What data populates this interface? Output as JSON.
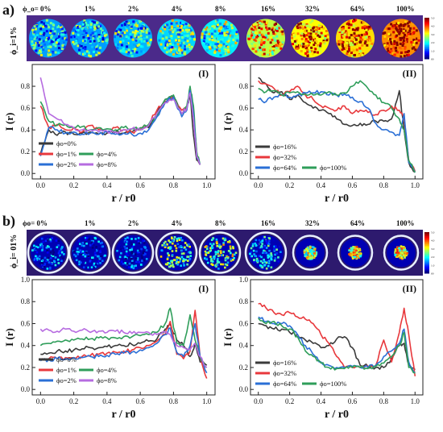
{
  "colors": {
    "black": "#3a3a3a",
    "red": "#e8383c",
    "green": "#2f9e5a",
    "blue": "#2a6fd6",
    "purple": "#b66be0"
  },
  "strip_scale_labels": [
    "00",
    "0.5",
    "1.0",
    "1.5",
    "2.0",
    "2.5",
    "3.0",
    "3.5",
    "4.0",
    "4.5",
    "5.0"
  ],
  "panels": [
    {
      "label": "a)",
      "phi_label": "ϕ_i=1%",
      "strip_labels": [
        "ϕ_o= 0%",
        "1%",
        "2%",
        "4%",
        "8%",
        "16%",
        "32%",
        "64%",
        "100%"
      ],
      "strip_fill": [
        0.35,
        0.35,
        0.38,
        0.42,
        0.45,
        0.7,
        0.78,
        0.82,
        0.92
      ],
      "chart_data": [
        {
          "type": "line",
          "tag": "(I)",
          "xlabel": "r / r0",
          "ylabel": "I (r)",
          "xlim": [
            -0.05,
            1.05
          ],
          "ylim": [
            -0.05,
            1.0
          ],
          "xticks": [
            0.0,
            0.2,
            0.4,
            0.6,
            0.8,
            1.0
          ],
          "yticks": [
            0.0,
            0.2,
            0.4,
            0.6,
            0.8
          ],
          "x": [
            0,
            0.05,
            0.1,
            0.15,
            0.2,
            0.25,
            0.3,
            0.35,
            0.4,
            0.45,
            0.5,
            0.55,
            0.6,
            0.65,
            0.7,
            0.75,
            0.8,
            0.85,
            0.88,
            0.9,
            0.92,
            0.94,
            0.96
          ],
          "legend": {
            "columns": 2,
            "entries": [
              [
                "ϕo=0%"
              ],
              [
                "ϕo=1%",
                "ϕo=4%"
              ],
              [
                "ϕo=2%",
                "ϕo=8%"
              ]
            ]
          },
          "series": [
            {
              "name": "ϕo=0%",
              "color": "black",
              "values": [
                0.18,
                0.4,
                0.35,
                0.38,
                0.36,
                0.37,
                0.38,
                0.36,
                0.37,
                0.38,
                0.37,
                0.38,
                0.4,
                0.42,
                0.55,
                0.68,
                0.7,
                0.55,
                0.6,
                0.72,
                0.35,
                0.12,
                0.08
              ]
            },
            {
              "name": "ϕo=1%",
              "color": "red",
              "values": [
                0.62,
                0.42,
                0.45,
                0.4,
                0.42,
                0.38,
                0.44,
                0.4,
                0.38,
                0.42,
                0.4,
                0.38,
                0.4,
                0.45,
                0.58,
                0.66,
                0.7,
                0.58,
                0.6,
                0.78,
                0.58,
                0.18,
                0.08
              ]
            },
            {
              "name": "ϕo=4%",
              "color": "green",
              "values": [
                0.66,
                0.48,
                0.44,
                0.45,
                0.42,
                0.43,
                0.4,
                0.42,
                0.41,
                0.4,
                0.42,
                0.41,
                0.42,
                0.45,
                0.52,
                0.68,
                0.72,
                0.55,
                0.62,
                0.8,
                0.62,
                0.2,
                0.08
              ]
            },
            {
              "name": "ϕo=2%",
              "color": "blue",
              "values": [
                0.16,
                0.42,
                0.4,
                0.37,
                0.38,
                0.36,
                0.37,
                0.36,
                0.38,
                0.36,
                0.37,
                0.36,
                0.37,
                0.4,
                0.52,
                0.65,
                0.7,
                0.52,
                0.58,
                0.76,
                0.55,
                0.15,
                0.08
              ]
            },
            {
              "name": "ϕo=8%",
              "color": "purple",
              "values": [
                0.88,
                0.55,
                0.5,
                0.45,
                0.42,
                0.4,
                0.4,
                0.38,
                0.39,
                0.38,
                0.4,
                0.41,
                0.4,
                0.44,
                0.55,
                0.65,
                0.68,
                0.55,
                0.6,
                0.74,
                0.5,
                0.15,
                0.08
              ]
            }
          ]
        },
        {
          "type": "line",
          "tag": "(II)",
          "xlabel": "r / r0",
          "ylabel": "I (r)",
          "xlim": [
            -0.05,
            1.05
          ],
          "ylim": [
            -0.05,
            1.0
          ],
          "xticks": [
            0.0,
            0.2,
            0.4,
            0.6,
            0.8,
            1.0
          ],
          "yticks": [
            0.0,
            0.2,
            0.4,
            0.6,
            0.8
          ],
          "x": [
            0,
            0.05,
            0.1,
            0.15,
            0.2,
            0.25,
            0.3,
            0.35,
            0.4,
            0.45,
            0.5,
            0.55,
            0.6,
            0.65,
            0.7,
            0.75,
            0.8,
            0.85,
            0.9,
            0.93,
            0.96,
            1.0
          ],
          "legend": {
            "columns": 2,
            "entries": [
              [
                "ϕo=16%"
              ],
              [
                "ϕo=32%"
              ],
              [
                "ϕo=64%",
                "ϕo=100%"
              ]
            ]
          },
          "series": [
            {
              "name": "ϕo=16%",
              "color": "black",
              "values": [
                0.88,
                0.82,
                0.74,
                0.75,
                0.68,
                0.72,
                0.65,
                0.6,
                0.58,
                0.55,
                0.5,
                0.45,
                0.44,
                0.46,
                0.45,
                0.48,
                0.48,
                0.5,
                0.76,
                0.4,
                0.1,
                0.01
              ]
            },
            {
              "name": "ϕo=32%",
              "color": "red",
              "values": [
                0.85,
                0.82,
                0.78,
                0.72,
                0.75,
                0.8,
                0.72,
                0.68,
                0.62,
                0.6,
                0.58,
                0.62,
                0.55,
                0.58,
                0.56,
                0.54,
                0.58,
                0.62,
                0.58,
                0.5,
                0.12,
                0.02
              ]
            },
            {
              "name": "ϕo=64%",
              "color": "blue",
              "values": [
                0.68,
                0.66,
                0.7,
                0.72,
                0.7,
                0.72,
                0.74,
                0.74,
                0.75,
                0.72,
                0.72,
                0.73,
                0.7,
                0.66,
                0.6,
                0.46,
                0.4,
                0.38,
                0.35,
                0.55,
                0.1,
                0.01
              ]
            },
            {
              "name": "ϕo=100%",
              "color": "green",
              "values": [
                0.78,
                0.75,
                0.76,
                0.72,
                0.74,
                0.75,
                0.73,
                0.72,
                0.72,
                0.75,
                0.72,
                0.74,
                0.8,
                0.85,
                0.78,
                0.72,
                0.65,
                0.6,
                0.5,
                0.4,
                0.12,
                0.01
              ]
            }
          ]
        }
      ]
    },
    {
      "label": "b)",
      "phi_label": "ϕ_i= 01%",
      "strip_labels": [
        "ϕo= 0%",
        "1%",
        "2%",
        "4%",
        "8%",
        "16%",
        "32%",
        "64%",
        "100%"
      ],
      "strip_fill": [
        0.2,
        0.15,
        0.15,
        0.45,
        0.5,
        0.3,
        0.55,
        0.6,
        0.6
      ],
      "chart_data": [
        {
          "type": "line",
          "tag": "(I)",
          "xlabel": "r / r0",
          "ylabel": "I (r)",
          "xlim": [
            -0.05,
            1.05
          ],
          "ylim": [
            -0.05,
            1.0
          ],
          "xticks": [
            0.0,
            0.2,
            0.4,
            0.6,
            0.8,
            1.0
          ],
          "yticks": [
            0.0,
            0.2,
            0.4,
            0.6,
            0.8,
            1.0
          ],
          "x": [
            0,
            0.05,
            0.1,
            0.15,
            0.2,
            0.25,
            0.3,
            0.35,
            0.4,
            0.45,
            0.5,
            0.55,
            0.6,
            0.65,
            0.7,
            0.75,
            0.78,
            0.82,
            0.86,
            0.9,
            0.93,
            0.96,
            1.0
          ],
          "legend": {
            "columns": 2,
            "entries": [
              [
                "ϕo=0%"
              ],
              [
                "ϕo=1%",
                "ϕo=4%"
              ],
              [
                "ϕo=2%",
                "ϕo=8%"
              ]
            ]
          },
          "series": [
            {
              "name": "ϕo=0%",
              "color": "black",
              "values": [
                0.32,
                0.33,
                0.35,
                0.35,
                0.36,
                0.37,
                0.38,
                0.38,
                0.39,
                0.4,
                0.4,
                0.41,
                0.42,
                0.44,
                0.46,
                0.55,
                0.6,
                0.45,
                0.4,
                0.3,
                0.42,
                0.25,
                0.22
              ]
            },
            {
              "name": "ϕo=1%",
              "color": "red",
              "values": [
                0.27,
                0.28,
                0.28,
                0.29,
                0.29,
                0.3,
                0.31,
                0.32,
                0.33,
                0.34,
                0.35,
                0.36,
                0.38,
                0.4,
                0.44,
                0.5,
                0.62,
                0.32,
                0.28,
                0.35,
                0.72,
                0.3,
                0.1
              ]
            },
            {
              "name": "ϕo=4%",
              "color": "green",
              "values": [
                0.4,
                0.42,
                0.44,
                0.45,
                0.45,
                0.46,
                0.46,
                0.47,
                0.47,
                0.47,
                0.48,
                0.48,
                0.49,
                0.5,
                0.52,
                0.6,
                0.74,
                0.42,
                0.4,
                0.68,
                0.45,
                0.3,
                0.2
              ]
            },
            {
              "name": "ϕo=2%",
              "color": "blue",
              "values": [
                0.26,
                0.27,
                0.28,
                0.28,
                0.29,
                0.29,
                0.3,
                0.3,
                0.31,
                0.32,
                0.33,
                0.34,
                0.36,
                0.38,
                0.42,
                0.5,
                0.56,
                0.34,
                0.3,
                0.4,
                0.6,
                0.3,
                0.15
              ]
            },
            {
              "name": "ϕo=8%",
              "color": "purple",
              "values": [
                0.55,
                0.54,
                0.53,
                0.55,
                0.53,
                0.54,
                0.52,
                0.53,
                0.52,
                0.53,
                0.52,
                0.51,
                0.52,
                0.52,
                0.5,
                0.52,
                0.5,
                0.4,
                0.38,
                0.36,
                0.42,
                0.3,
                0.2
              ]
            }
          ]
        },
        {
          "type": "line",
          "tag": "(II)",
          "xlabel": "r / r0",
          "ylabel": "I (r)",
          "xlim": [
            -0.05,
            1.05
          ],
          "ylim": [
            -0.05,
            1.0
          ],
          "xticks": [
            0.0,
            0.2,
            0.4,
            0.6,
            0.8,
            1.0
          ],
          "yticks": [
            0.0,
            0.2,
            0.4,
            0.6,
            0.8,
            1.0
          ],
          "x": [
            0,
            0.05,
            0.1,
            0.15,
            0.2,
            0.25,
            0.3,
            0.35,
            0.4,
            0.45,
            0.5,
            0.55,
            0.6,
            0.65,
            0.7,
            0.75,
            0.8,
            0.85,
            0.9,
            0.93,
            0.96,
            1.0
          ],
          "legend": {
            "columns": 2,
            "entries": [
              [
                "ϕo=16%"
              ],
              [
                "ϕo=32%"
              ],
              [
                "ϕo=64%",
                "ϕo=100%"
              ]
            ]
          },
          "series": [
            {
              "name": "ϕo=16%",
              "color": "black",
              "values": [
                0.6,
                0.58,
                0.55,
                0.55,
                0.52,
                0.5,
                0.45,
                0.42,
                0.38,
                0.4,
                0.46,
                0.48,
                0.38,
                0.22,
                0.21,
                0.2,
                0.2,
                0.28,
                0.4,
                0.42,
                0.22,
                0.18
              ]
            },
            {
              "name": "ϕo=32%",
              "color": "red",
              "values": [
                0.78,
                0.74,
                0.7,
                0.68,
                0.7,
                0.66,
                0.64,
                0.6,
                0.5,
                0.42,
                0.3,
                0.2,
                0.2,
                0.2,
                0.21,
                0.22,
                0.45,
                0.25,
                0.52,
                0.74,
                0.5,
                0.12
              ]
            },
            {
              "name": "ϕo=64%",
              "color": "blue",
              "values": [
                0.66,
                0.62,
                0.6,
                0.6,
                0.58,
                0.5,
                0.4,
                0.32,
                0.25,
                0.22,
                0.2,
                0.2,
                0.21,
                0.2,
                0.2,
                0.22,
                0.3,
                0.35,
                0.42,
                0.55,
                0.25,
                0.15
              ]
            },
            {
              "name": "ϕo=100%",
              "color": "green",
              "values": [
                0.65,
                0.6,
                0.62,
                0.58,
                0.55,
                0.48,
                0.35,
                0.3,
                0.24,
                0.2,
                0.19,
                0.19,
                0.2,
                0.2,
                0.19,
                0.21,
                0.24,
                0.3,
                0.4,
                0.52,
                0.2,
                0.15
              ]
            }
          ]
        }
      ]
    }
  ]
}
